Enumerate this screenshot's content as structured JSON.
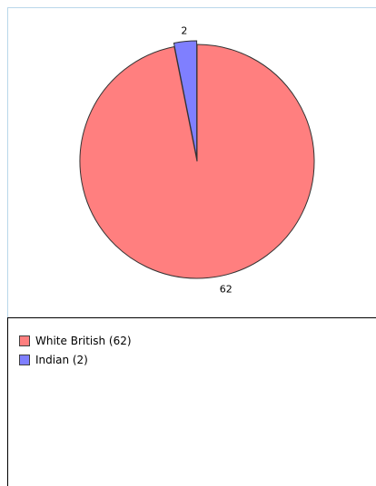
{
  "chart_data": {
    "type": "pie",
    "categories": [
      "White British",
      "Indian"
    ],
    "values": [
      62,
      2
    ],
    "colors": [
      "#ff7f7f",
      "#7f7fff"
    ],
    "slice_labels": [
      "62",
      "2"
    ],
    "legend": {
      "placement": "bottom",
      "entries": [
        "White British (62)",
        "Indian (2)"
      ]
    }
  }
}
